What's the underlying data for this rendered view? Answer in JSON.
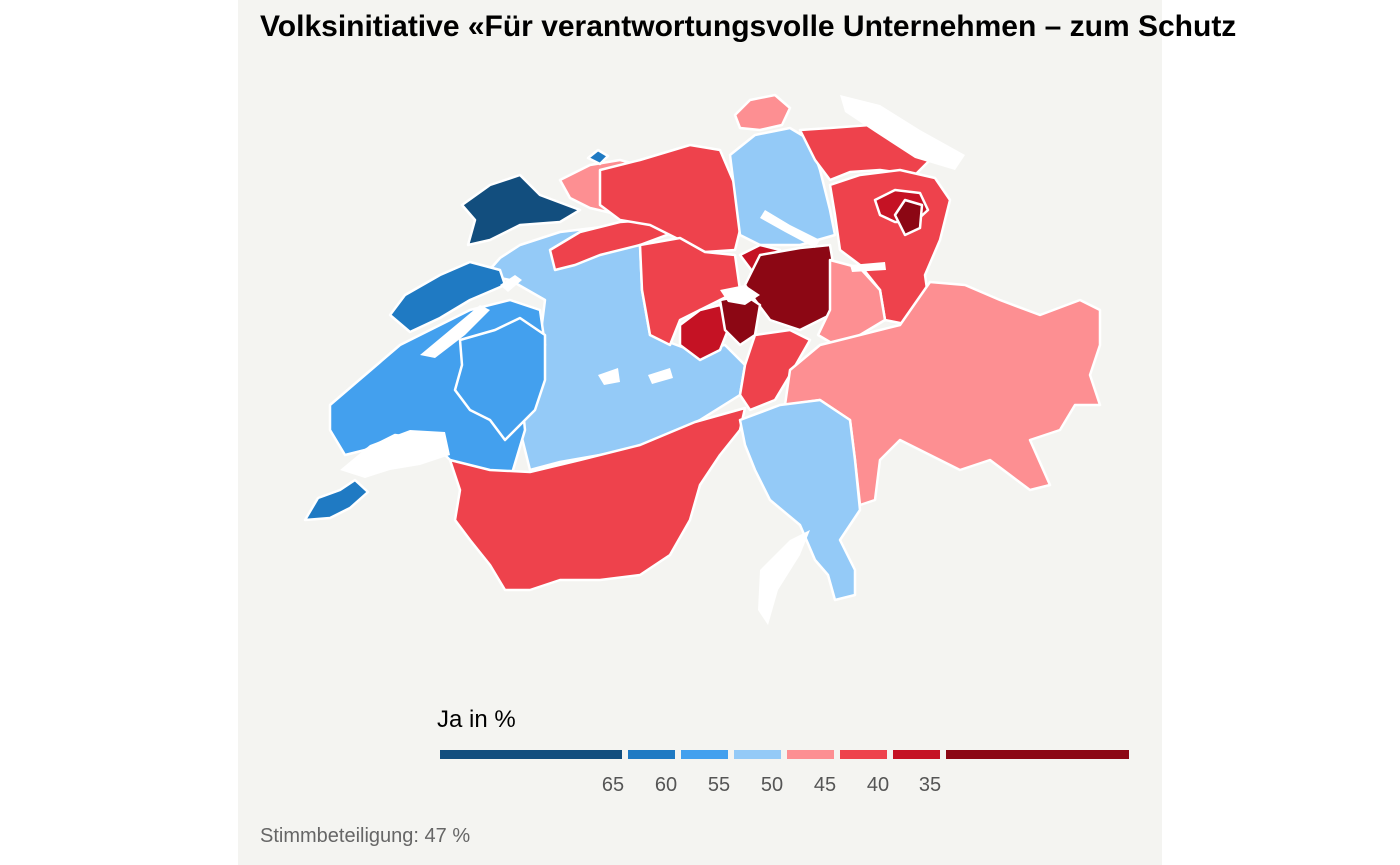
{
  "title": "Volksinitiative «Für verantwortungsvolle Unternehmen – zum Schutz",
  "legend": {
    "title": "Ja in %",
    "ticks": [
      "65",
      "60",
      "55",
      "50",
      "45",
      "40",
      "35"
    ],
    "colors": [
      "#124e7e",
      "#1f7ac3",
      "#43a0ee",
      "#94caf7",
      "#fd8f92",
      "#ee424c",
      "#c51224",
      "#8c0714"
    ]
  },
  "footer": {
    "turnout": "Stimmbeteiligung: 47 %"
  },
  "map": {
    "background": "#f4f4f1",
    "border_color": "#ffffff",
    "lake_color": "#ffffff"
  }
}
